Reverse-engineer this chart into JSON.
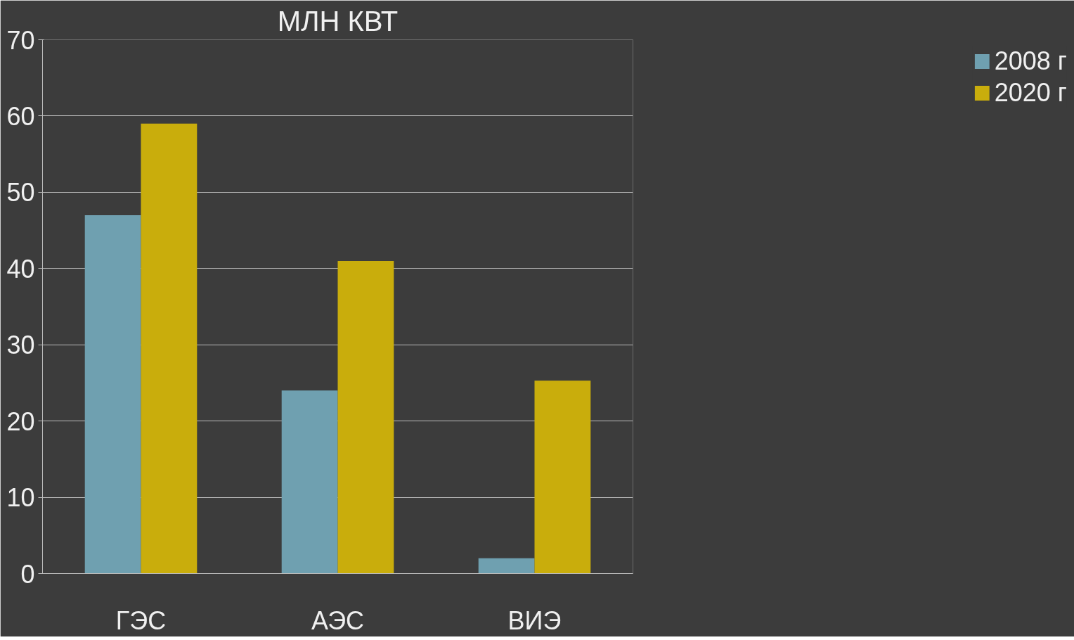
{
  "chart_data": {
    "type": "bar",
    "title": "МЛН КВТ",
    "categories": [
      "ГЭС",
      "АЭС",
      "ВИЭ"
    ],
    "series": [
      {
        "name": "2008 г",
        "color": "#6fa0b0",
        "values": [
          47,
          24,
          2
        ]
      },
      {
        "name": "2020 г",
        "color": "#c9ad0c",
        "values": [
          59,
          41,
          25.3
        ]
      }
    ],
    "ylim": [
      0,
      70
    ],
    "yticks": [
      0,
      10,
      20,
      30,
      40,
      50,
      60,
      70
    ],
    "grid": "y",
    "legend": "right"
  }
}
